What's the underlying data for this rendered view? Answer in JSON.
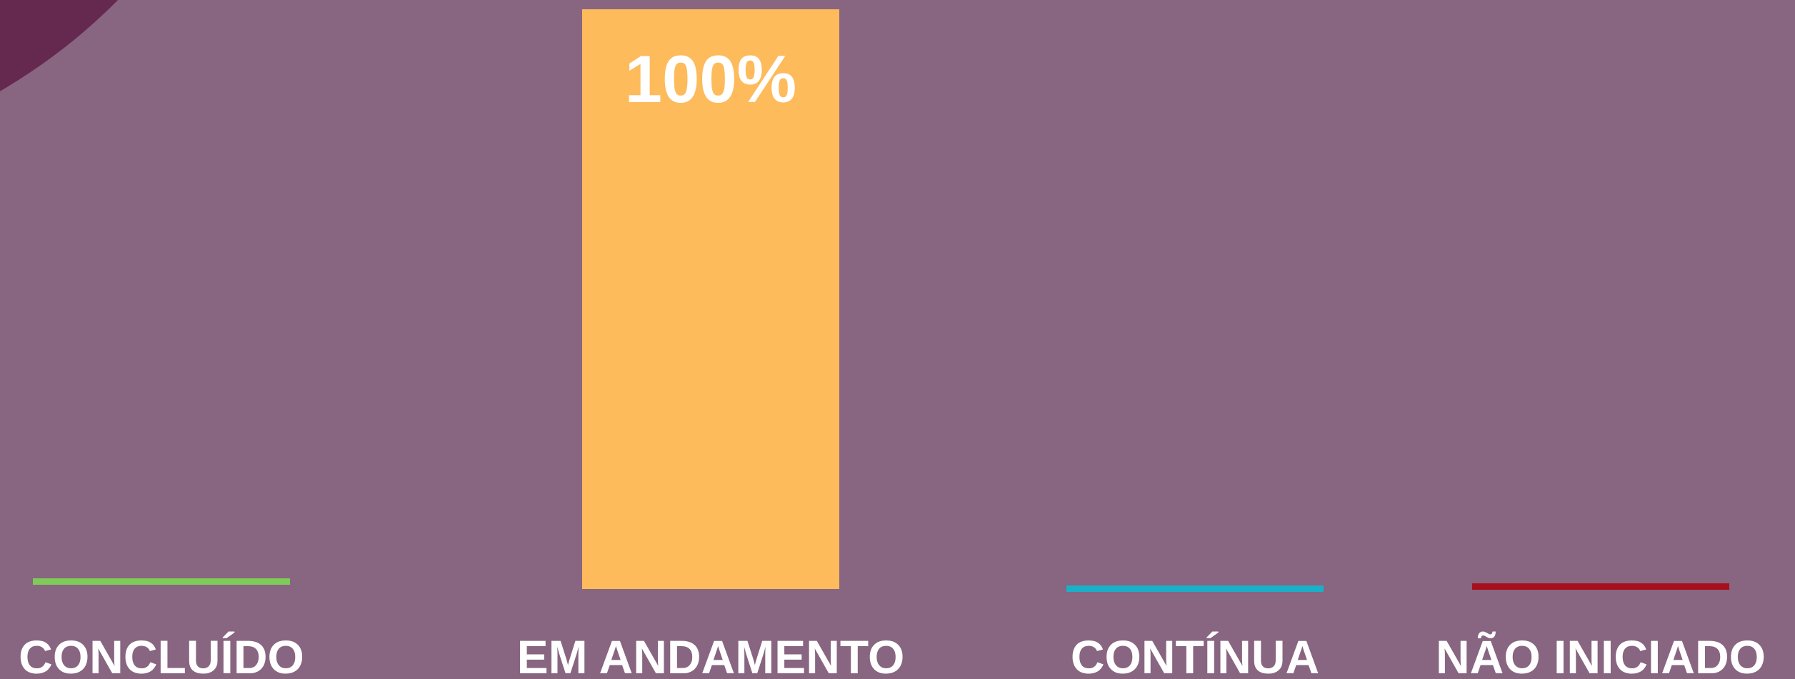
{
  "chart_data": {
    "type": "bar",
    "categories": [
      "CONCLUÍDO",
      "EM ANDAMENTO",
      "CONTÍNUA",
      "NÃO INICIADO"
    ],
    "values": [
      0,
      100,
      0,
      0
    ],
    "value_labels": [
      null,
      "100%",
      null,
      null
    ],
    "colors": [
      "#7ecb5a",
      "#fdbb5c",
      "#1ab0c8",
      "#a8101c"
    ],
    "ylim": [
      0,
      100
    ]
  }
}
